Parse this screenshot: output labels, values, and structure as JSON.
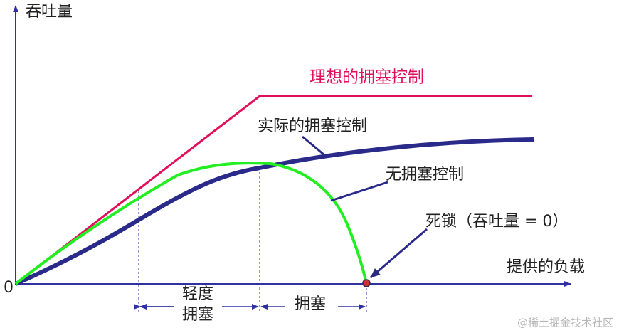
{
  "axes": {
    "y_label": "吞吐量",
    "x_label": "提供的负载",
    "origin": "0"
  },
  "curves": {
    "ideal": "理想的拥塞控制",
    "actual": "实际的拥塞控制",
    "none": "无拥塞控制",
    "deadlock": "死锁（吞吐量 = 0）"
  },
  "regions": {
    "light": [
      "轻度",
      "拥塞"
    ],
    "congested": "拥塞"
  },
  "watermark": "@稀土掘金技术社区"
}
